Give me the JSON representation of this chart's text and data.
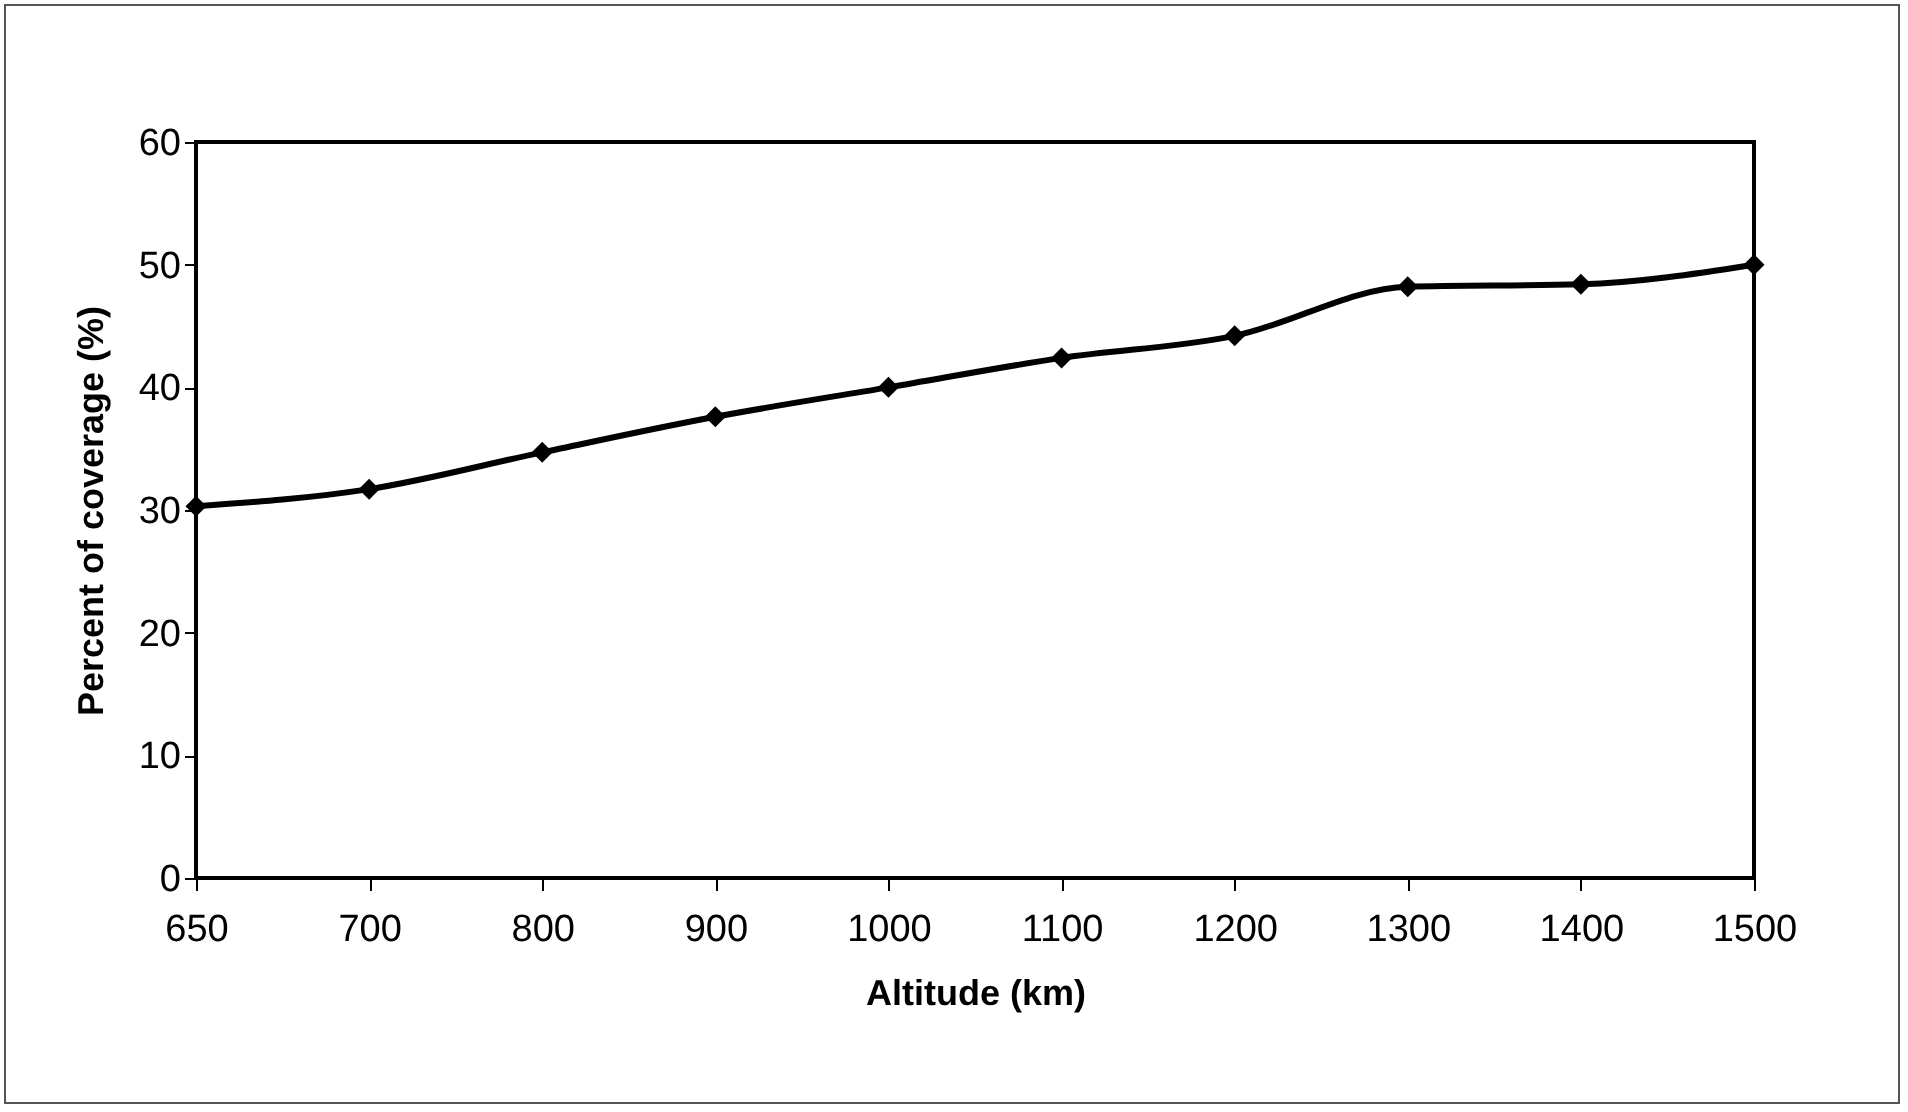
{
  "chart_data": {
    "type": "line",
    "xlabel": "Altitude (km)",
    "ylabel": "Percent of coverage (%)",
    "categories": [
      "650",
      "700",
      "800",
      "900",
      "1000",
      "1100",
      "1200",
      "1300",
      "1400",
      "1500"
    ],
    "series": [
      {
        "color": "#000000",
        "values": [
          30.3,
          31.7,
          34.7,
          37.6,
          40.0,
          42.4,
          44.2,
          48.2,
          48.4,
          50.0
        ]
      }
    ],
    "ylim": [
      0,
      60
    ],
    "yticks": [
      0,
      10,
      20,
      30,
      40,
      50,
      60
    ],
    "grid": false,
    "legend": false,
    "marker": "diamond",
    "line_style": "solid"
  }
}
